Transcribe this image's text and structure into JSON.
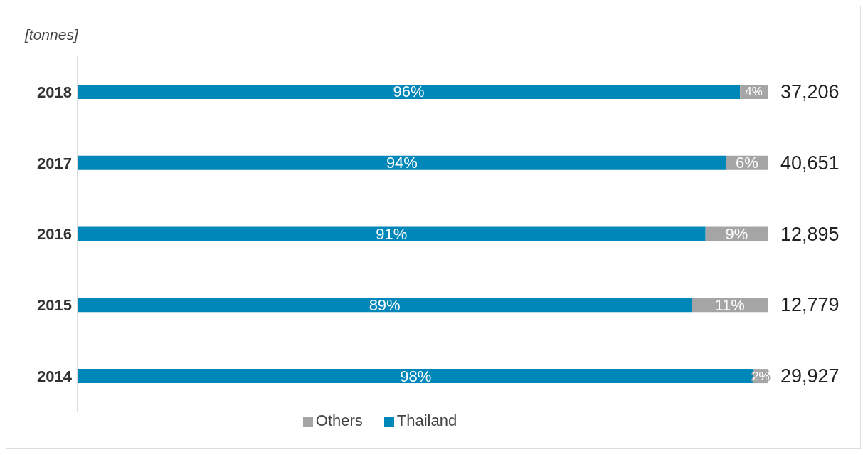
{
  "chart_data": {
    "type": "bar",
    "orientation": "horizontal",
    "stacked": true,
    "categories": [
      "2018",
      "2017",
      "2016",
      "2015",
      "2014"
    ],
    "series": [
      {
        "name": "Thailand",
        "color": "#0087b9",
        "values": [
          96,
          94,
          91,
          89,
          98
        ],
        "value_labels": [
          "96%",
          "94%",
          "91%",
          "89%",
          "98%"
        ]
      },
      {
        "name": "Others",
        "color": "#a5a5a5",
        "values": [
          4,
          6,
          9,
          11,
          2
        ],
        "value_labels": [
          "4%",
          "6%",
          "9%",
          "11%",
          "2%"
        ]
      }
    ],
    "annotations": [
      "[tonnes]",
      "37,206",
      "40,651",
      "12,895",
      "12,779",
      "29,927"
    ],
    "legend": "bottom",
    "tick_labels": "y"
  }
}
